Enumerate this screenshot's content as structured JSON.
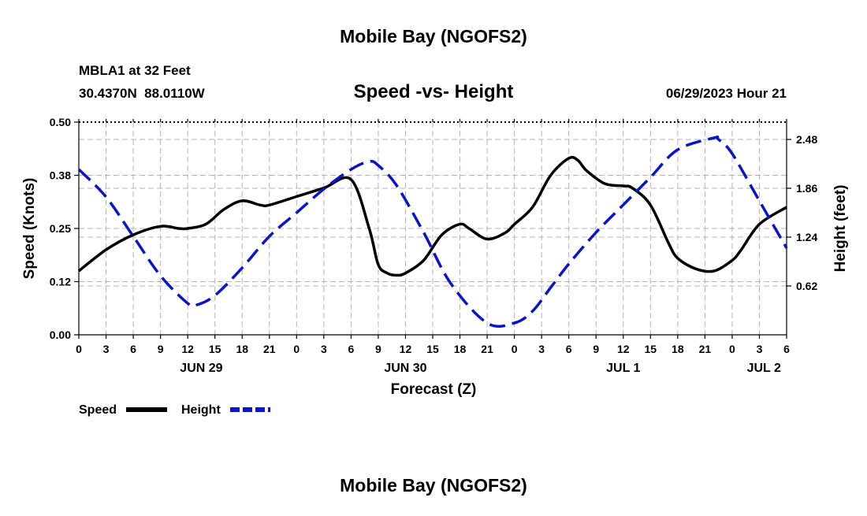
{
  "header": {
    "title": "Mobile Bay (NGOFS2)",
    "station": "MBLA1 at 32 Feet",
    "coords": "30.4370N  88.0110W",
    "chart_title": "Speed -vs- Height",
    "datetime": "06/29/2023 Hour 21"
  },
  "footer": {
    "title": "Mobile Bay (NGOFS2)"
  },
  "legend": {
    "speed_label": "Speed",
    "height_label": "Height"
  },
  "colors": {
    "speed": "#000000",
    "height": "#0a14c8"
  },
  "chart_data": {
    "type": "line",
    "xlabel": "Forecast (Z)",
    "ylabel_left": "Speed (Knots)",
    "ylabel_right": "Height (feet)",
    "x_range_hours": [
      0,
      78
    ],
    "x_tick_step_hours": 3,
    "x_tick_labels": [
      "0",
      "3",
      "6",
      "9",
      "12",
      "15",
      "18",
      "21",
      "0",
      "3",
      "6",
      "9",
      "12",
      "15",
      "18",
      "21",
      "0",
      "3",
      "6",
      "9",
      "12",
      "15",
      "18",
      "21",
      "0",
      "3",
      "6"
    ],
    "date_labels": [
      {
        "label": "JUN 29",
        "hour": 13.5
      },
      {
        "label": "JUN 30",
        "hour": 36
      },
      {
        "label": "JUL 1",
        "hour": 60
      },
      {
        "label": "JUL 2",
        "hour": 75.5
      }
    ],
    "ylim_left": [
      0,
      0.5
    ],
    "y_ticks_left": [
      0,
      0.125,
      0.25,
      0.375,
      0.5
    ],
    "y_tick_labels_left": [
      "0.00",
      "0.12",
      "0.25",
      "0.38",
      "0.50"
    ],
    "ylim_right": [
      0,
      2.7
    ],
    "y_ticks_right": [
      0.62,
      1.24,
      1.86,
      2.48
    ],
    "y_tick_labels_right": [
      "0.62",
      "1.24",
      "1.86",
      "2.48"
    ],
    "series": [
      {
        "name": "Speed",
        "axis": "left",
        "x": [
          0,
          3,
          6,
          9,
          11,
          12,
          14,
          16,
          18,
          20,
          21,
          24,
          27,
          30,
          32,
          33,
          34,
          35,
          36,
          38,
          40,
          42,
          43,
          45,
          47,
          48,
          50,
          52,
          54,
          55,
          56,
          58,
          60,
          61,
          63,
          65,
          66,
          68,
          70,
          72,
          73,
          75,
          78
        ],
        "y": [
          0.15,
          0.2,
          0.235,
          0.255,
          0.25,
          0.25,
          0.26,
          0.295,
          0.315,
          0.305,
          0.305,
          0.325,
          0.345,
          0.365,
          0.25,
          0.165,
          0.145,
          0.14,
          0.145,
          0.175,
          0.235,
          0.26,
          0.25,
          0.225,
          0.24,
          0.26,
          0.3,
          0.375,
          0.415,
          0.41,
          0.385,
          0.355,
          0.35,
          0.345,
          0.305,
          0.215,
          0.18,
          0.155,
          0.15,
          0.175,
          0.2,
          0.26,
          0.3
        ]
      },
      {
        "name": "Height",
        "axis": "right",
        "x": [
          0,
          3,
          6,
          9,
          12,
          13,
          15,
          18,
          21,
          24,
          27,
          30,
          32,
          33,
          35,
          38,
          41,
          45,
          48,
          50,
          52,
          54,
          57,
          60,
          63,
          66,
          70,
          70.5,
          72,
          75,
          78
        ],
        "y": [
          2.1,
          1.75,
          1.25,
          0.75,
          0.4,
          0.38,
          0.5,
          0.85,
          1.25,
          1.55,
          1.85,
          2.1,
          2.2,
          2.15,
          1.9,
          1.3,
          0.65,
          0.15,
          0.15,
          0.3,
          0.6,
          0.9,
          1.3,
          1.65,
          2.0,
          2.35,
          2.5,
          2.48,
          2.3,
          1.7,
          1.1
        ]
      }
    ]
  }
}
